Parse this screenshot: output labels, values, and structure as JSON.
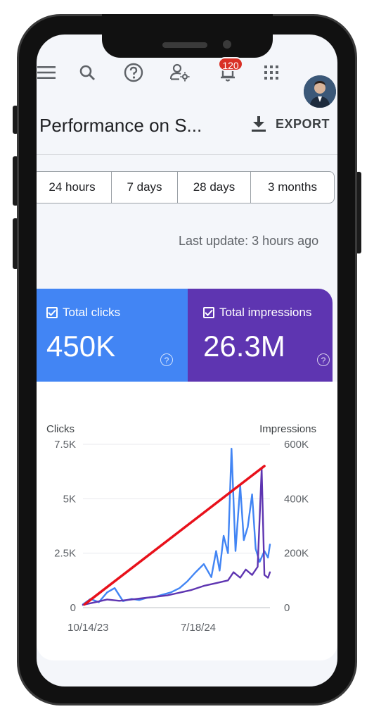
{
  "toolbar": {
    "icons": [
      "menu-icon",
      "search-icon",
      "help-icon",
      "manage-users-icon",
      "notifications-icon",
      "apps-grid-icon"
    ],
    "notification_count": "120"
  },
  "header": {
    "title": "Performance on S...",
    "export_label": "EXPORT"
  },
  "date_ranges": [
    "24 hours",
    "7 days",
    "28 days",
    "3 months"
  ],
  "last_update": "Last update: 3 hours ago",
  "metrics": {
    "clicks": {
      "label": "Total clicks",
      "value": "450K",
      "color": "#4285f4",
      "checked": true
    },
    "impressions": {
      "label": "Total impressions",
      "value": "26.3M",
      "color": "#5e35b1",
      "checked": true
    }
  },
  "chart_data": {
    "type": "line",
    "left_axis_title": "Clicks",
    "right_axis_title": "Impressions",
    "left_ticks": [
      "0",
      "2.5K",
      "5K",
      "7.5K"
    ],
    "right_ticks": [
      "0",
      "200K",
      "400K",
      "600K"
    ],
    "x_tick_labels": [
      "10/14/23",
      "7/18/24"
    ],
    "x_range": [
      "2023-10-01",
      "2025-01-15"
    ],
    "ylim_left": [
      0,
      7500
    ],
    "ylim_right": [
      0,
      600000
    ],
    "grid": true,
    "series": [
      {
        "name": "Clicks",
        "axis": "left",
        "color": "#4285f4",
        "x": [
          "2023-10-01",
          "2023-10-20",
          "2023-11-10",
          "2023-12-01",
          "2023-12-20",
          "2024-01-10",
          "2024-02-01",
          "2024-02-20",
          "2024-03-10",
          "2024-04-01",
          "2024-04-20",
          "2024-05-10",
          "2024-06-01",
          "2024-06-20",
          "2024-07-10",
          "2024-08-01",
          "2024-08-20",
          "2024-09-01",
          "2024-09-10",
          "2024-09-20",
          "2024-10-01",
          "2024-10-10",
          "2024-10-20",
          "2024-11-01",
          "2024-11-10",
          "2024-11-20",
          "2024-12-01",
          "2024-12-10",
          "2024-12-20",
          "2025-01-01",
          "2025-01-10",
          "2025-01-15"
        ],
        "y": [
          150,
          400,
          250,
          700,
          900,
          300,
          400,
          350,
          450,
          500,
          600,
          700,
          900,
          1200,
          1600,
          2000,
          1400,
          2600,
          1700,
          3300,
          2500,
          7300,
          2600,
          5600,
          3100,
          3700,
          5200,
          2700,
          2100,
          2600,
          2300,
          2900
        ]
      },
      {
        "name": "Impressions",
        "axis": "right",
        "color": "#5e35b1",
        "x": [
          "2023-10-01",
          "2023-11-01",
          "2023-12-01",
          "2024-01-01",
          "2024-02-01",
          "2024-03-01",
          "2024-04-01",
          "2024-05-01",
          "2024-06-01",
          "2024-07-01",
          "2024-08-01",
          "2024-09-01",
          "2024-10-01",
          "2024-10-15",
          "2024-11-01",
          "2024-11-15",
          "2024-12-01",
          "2024-12-15",
          "2024-12-25",
          "2025-01-01",
          "2025-01-10",
          "2025-01-15"
        ],
        "y": [
          10000,
          20000,
          30000,
          25000,
          30000,
          35000,
          40000,
          45000,
          55000,
          65000,
          80000,
          90000,
          100000,
          130000,
          110000,
          140000,
          120000,
          150000,
          510000,
          120000,
          110000,
          130000
        ]
      },
      {
        "name": "",
        "axis": "left",
        "color": "#e8111b",
        "x": [
          "2023-10-05",
          "2025-01-01"
        ],
        "y": [
          150,
          6500
        ]
      }
    ]
  }
}
